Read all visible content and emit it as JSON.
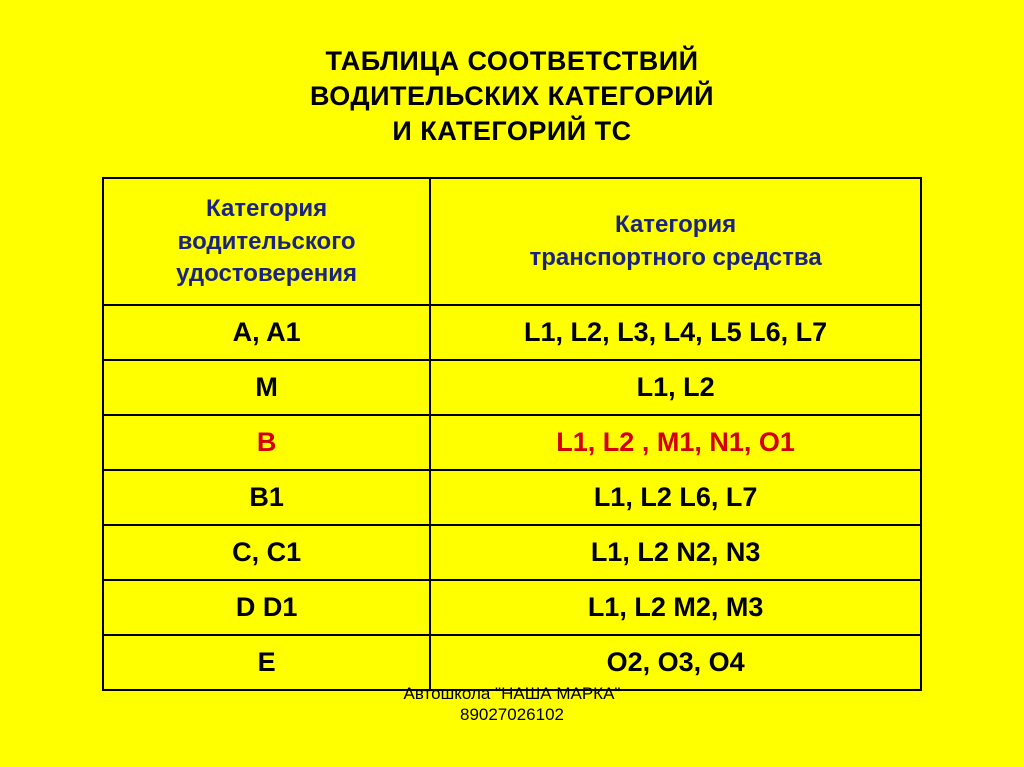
{
  "colors": {
    "background": "#ffff00",
    "border": "#000000",
    "title_text": "#000000",
    "header_text": "#1a237e",
    "body_text": "#000000",
    "highlight_text": "#d40000"
  },
  "title": {
    "line1": "ТАБЛИЦА СООТВЕТСТВИЙ",
    "line2": "ВОДИТЕЛЬСКИХ КАТЕГОРИЙ",
    "line3": "И КАТЕГОРИЙ ТС"
  },
  "table": {
    "headers": {
      "col1_line1": "Категория",
      "col1_line2": "водительского",
      "col1_line3": "удостоверения",
      "col2_line1": "Категория",
      "col2_line2": "транспортного средства"
    },
    "rows": [
      {
        "license": "A, A1",
        "vehicle": "L1, L2, L3, L4, L5 L6, L7",
        "highlight": false
      },
      {
        "license": "M",
        "vehicle": "L1, L2",
        "highlight": false
      },
      {
        "license": "B",
        "vehicle": "L1, L2 , M1, N1, O1",
        "highlight": true
      },
      {
        "license": "B1",
        "vehicle": "L1, L2 L6, L7",
        "highlight": false
      },
      {
        "license": "C, C1",
        "vehicle": "L1, L2 N2, N3",
        "highlight": false
      },
      {
        "license": "D D1",
        "vehicle": "L1, L2 M2, M3",
        "highlight": false
      },
      {
        "license": "E",
        "vehicle": "O2, O3, O4",
        "highlight": false
      }
    ]
  },
  "footer": {
    "line1": "Автошкола \"НАША МАРКА\"",
    "line2": "89027026102"
  }
}
